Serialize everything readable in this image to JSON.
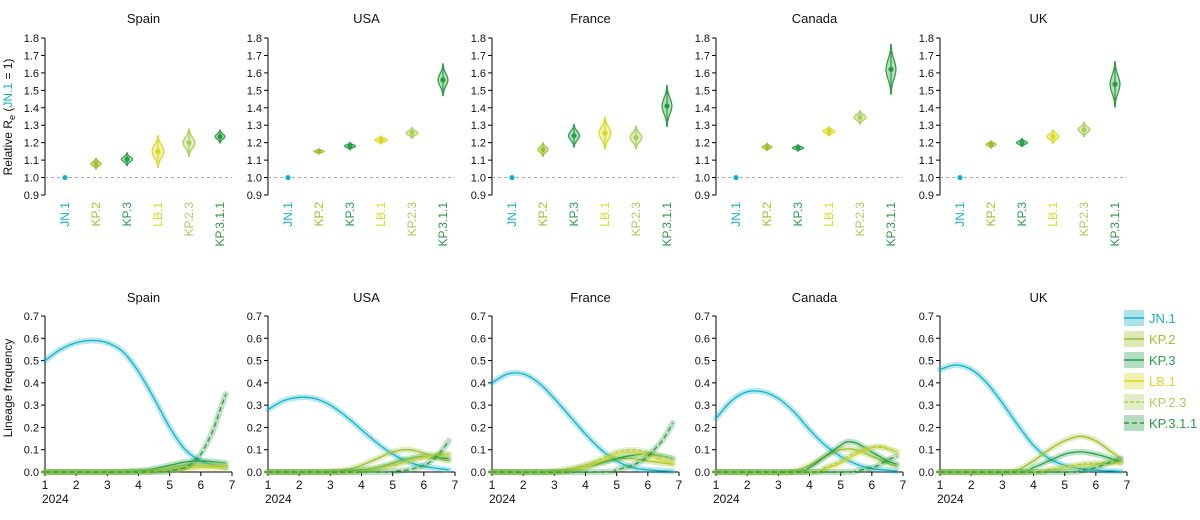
{
  "chart_data": {
    "type": "multi-panel",
    "colors": {
      "JN.1": "#12b3c7",
      "KP.2": "#9cc12e",
      "KP.3": "#28a04a",
      "LB.1": "#d8d820",
      "KP.2.3": "#aacd58",
      "KP.3.1.1": "#2b9a40"
    },
    "variants": [
      "JN.1",
      "KP.2",
      "KP.3",
      "LB.1",
      "KP.2.3",
      "KP.3.1.1"
    ],
    "re_panels": {
      "type": "violin",
      "ylabel_prefix": "Relative R",
      "ylabel_sub": "e",
      "ylabel_ref": "JN.1",
      "ylabel_suffix": " = 1)",
      "ylim": [
        0.9,
        1.8
      ],
      "yticks": [
        "0.9",
        "1.0",
        "1.1",
        "1.2",
        "1.3",
        "1.4",
        "1.5",
        "1.6",
        "1.7",
        "1.8"
      ],
      "reference_line": 1.0,
      "countries": [
        {
          "name": "Spain",
          "values": [
            1.0,
            1.08,
            1.105,
            1.15,
            1.2,
            1.235
          ]
        },
        {
          "name": "USA",
          "values": [
            1.0,
            1.15,
            1.18,
            1.215,
            1.255,
            1.56
          ]
        },
        {
          "name": "France",
          "values": [
            1.0,
            1.16,
            1.24,
            1.255,
            1.23,
            1.41
          ]
        },
        {
          "name": "Canada",
          "values": [
            1.0,
            1.175,
            1.17,
            1.265,
            1.345,
            1.62
          ]
        },
        {
          "name": "UK",
          "values": [
            1.0,
            1.19,
            1.2,
            1.235,
            1.275,
            1.535
          ]
        }
      ]
    },
    "freq_panels": {
      "type": "line",
      "ylabel": "Lineage frequency",
      "xlabel_year": "2024",
      "xlim": [
        1,
        7
      ],
      "xticks": [
        "1",
        "2",
        "3",
        "4",
        "5",
        "6",
        "7"
      ],
      "ylim": [
        0,
        0.7
      ],
      "yticks": [
        "0.0",
        "0.1",
        "0.2",
        "0.3",
        "0.4",
        "0.5",
        "0.6",
        "0.7"
      ],
      "countries": [
        {
          "name": "Spain",
          "series": [
            {
              "name": "JN.1",
              "x": [
                1,
                1.5,
                2,
                2.5,
                3,
                3.5,
                4,
                4.5,
                5,
                5.5,
                6,
                6.5,
                6.8
              ],
              "y": [
                0.5,
                0.55,
                0.58,
                0.59,
                0.58,
                0.54,
                0.45,
                0.33,
                0.2,
                0.1,
                0.05,
                0.03,
                0.02
              ]
            },
            {
              "name": "KP.2",
              "x": [
                1,
                3,
                4,
                4.5,
                5,
                5.5,
                6,
                6.5,
                6.8
              ],
              "y": [
                0,
                0,
                0.003,
                0.008,
                0.02,
                0.03,
                0.03,
                0.025,
                0.02
              ]
            },
            {
              "name": "KP.3",
              "x": [
                1,
                3,
                4,
                4.5,
                5,
                5.5,
                6,
                6.5,
                6.8
              ],
              "y": [
                0,
                0,
                0.005,
                0.015,
                0.03,
                0.045,
                0.05,
                0.045,
                0.04
              ]
            },
            {
              "name": "LB.1",
              "x": [
                1,
                4,
                4.5,
                5,
                5.5,
                6,
                6.5,
                6.8
              ],
              "y": [
                0,
                0,
                0.003,
                0.008,
                0.015,
                0.02,
                0.02,
                0.02
              ]
            },
            {
              "name": "KP.2.3",
              "x": [
                1,
                4,
                4.5,
                5,
                5.5,
                6,
                6.5,
                6.8
              ],
              "y": [
                0,
                0,
                0.003,
                0.01,
                0.02,
                0.03,
                0.03,
                0.03
              ]
            },
            {
              "name": "KP.3.1.1",
              "x": [
                1,
                4.5,
                5,
                5.5,
                5.8,
                6,
                6.2,
                6.4,
                6.6,
                6.8
              ],
              "y": [
                0,
                0,
                0.005,
                0.02,
                0.05,
                0.08,
                0.13,
                0.19,
                0.27,
                0.35
              ]
            }
          ]
        },
        {
          "name": "USA",
          "series": [
            {
              "name": "JN.1",
              "x": [
                1,
                1.5,
                2,
                2.5,
                3,
                3.5,
                4,
                4.5,
                5,
                5.5,
                6,
                6.5,
                6.8
              ],
              "y": [
                0.28,
                0.32,
                0.335,
                0.33,
                0.3,
                0.25,
                0.19,
                0.13,
                0.08,
                0.045,
                0.025,
                0.015,
                0.01
              ]
            },
            {
              "name": "KP.2",
              "x": [
                1,
                2,
                3,
                3.5,
                4,
                4.5,
                5,
                5.5,
                6,
                6.5,
                6.8
              ],
              "y": [
                0,
                0,
                0.003,
                0.01,
                0.03,
                0.06,
                0.09,
                0.1,
                0.085,
                0.06,
                0.05
              ]
            },
            {
              "name": "KP.3",
              "x": [
                1,
                3,
                4,
                4.5,
                5,
                5.5,
                6,
                6.5,
                6.8
              ],
              "y": [
                0,
                0,
                0.01,
                0.02,
                0.04,
                0.06,
                0.07,
                0.065,
                0.06
              ]
            },
            {
              "name": "LB.1",
              "x": [
                1,
                3.5,
                4,
                4.5,
                5,
                5.5,
                6,
                6.5,
                6.8
              ],
              "y": [
                0,
                0,
                0.005,
                0.015,
                0.03,
                0.05,
                0.065,
                0.075,
                0.08
              ]
            },
            {
              "name": "KP.2.3",
              "x": [
                1,
                3.5,
                4,
                4.5,
                5,
                5.5,
                6,
                6.5,
                6.8
              ],
              "y": [
                0,
                0,
                0.005,
                0.015,
                0.03,
                0.05,
                0.07,
                0.08,
                0.08
              ]
            },
            {
              "name": "KP.3.1.1",
              "x": [
                1,
                4.5,
                5,
                5.5,
                5.8,
                6,
                6.2,
                6.4,
                6.6,
                6.8
              ],
              "y": [
                0,
                0,
                0.003,
                0.01,
                0.02,
                0.03,
                0.045,
                0.07,
                0.1,
                0.14
              ]
            }
          ]
        },
        {
          "name": "France",
          "series": [
            {
              "name": "JN.1",
              "x": [
                1,
                1.5,
                2,
                2.5,
                3,
                3.5,
                4,
                4.5,
                5,
                5.5,
                6,
                6.5,
                6.8
              ],
              "y": [
                0.4,
                0.44,
                0.44,
                0.4,
                0.33,
                0.25,
                0.17,
                0.1,
                0.05,
                0.02,
                0.01,
                0.005,
                0.003
              ]
            },
            {
              "name": "KP.2",
              "x": [
                1,
                2.5,
                3,
                3.5,
                4,
                4.5,
                5,
                5.5,
                6,
                6.5,
                6.8
              ],
              "y": [
                0,
                0,
                0.005,
                0.015,
                0.03,
                0.045,
                0.06,
                0.06,
                0.05,
                0.04,
                0.035
              ]
            },
            {
              "name": "KP.3",
              "x": [
                1,
                3,
                3.5,
                4,
                4.5,
                5,
                5.5,
                6,
                6.5,
                6.8
              ],
              "y": [
                0,
                0,
                0.005,
                0.02,
                0.04,
                0.06,
                0.075,
                0.08,
                0.07,
                0.06
              ]
            },
            {
              "name": "LB.1",
              "x": [
                1,
                3,
                3.5,
                4,
                4.5,
                5,
                5.5,
                6,
                6.5,
                6.8
              ],
              "y": [
                0,
                0,
                0.005,
                0.02,
                0.05,
                0.08,
                0.09,
                0.075,
                0.05,
                0.04
              ]
            },
            {
              "name": "KP.2.3",
              "x": [
                1,
                3,
                3.5,
                4,
                4.5,
                5,
                5.5,
                6,
                6.5,
                6.8
              ],
              "y": [
                0,
                0,
                0.01,
                0.03,
                0.06,
                0.09,
                0.1,
                0.09,
                0.07,
                0.06
              ]
            },
            {
              "name": "KP.3.1.1",
              "x": [
                1,
                4.5,
                5,
                5.5,
                5.8,
                6,
                6.2,
                6.4,
                6.6,
                6.8
              ],
              "y": [
                0,
                0,
                0.01,
                0.03,
                0.05,
                0.07,
                0.1,
                0.13,
                0.17,
                0.22
              ]
            }
          ]
        },
        {
          "name": "Canada",
          "series": [
            {
              "name": "JN.1",
              "x": [
                1,
                1.5,
                2,
                2.5,
                3,
                3.5,
                4,
                4.5,
                5,
                5.5,
                6,
                6.5,
                6.8
              ],
              "y": [
                0.24,
                0.32,
                0.36,
                0.36,
                0.33,
                0.27,
                0.19,
                0.12,
                0.07,
                0.035,
                0.015,
                0.008,
                0.005
              ]
            },
            {
              "name": "KP.2",
              "x": [
                1,
                3,
                3.5,
                4,
                4.5,
                5,
                5.5,
                6,
                6.5,
                6.8
              ],
              "y": [
                0,
                0,
                0.005,
                0.03,
                0.07,
                0.1,
                0.1,
                0.07,
                0.04,
                0.025
              ]
            },
            {
              "name": "KP.3",
              "x": [
                1,
                3.5,
                4,
                4.5,
                5,
                5.2,
                5.5,
                6,
                6.5,
                6.8
              ],
              "y": [
                0,
                0,
                0.02,
                0.07,
                0.12,
                0.135,
                0.13,
                0.09,
                0.05,
                0.035
              ]
            },
            {
              "name": "LB.1",
              "x": [
                1,
                4,
                4.5,
                5,
                5.5,
                6,
                6.3,
                6.6,
                6.8
              ],
              "y": [
                0,
                0,
                0.015,
                0.04,
                0.08,
                0.11,
                0.115,
                0.1,
                0.09
              ]
            },
            {
              "name": "KP.2.3",
              "x": [
                1,
                4,
                4.5,
                5,
                5.5,
                6,
                6.3,
                6.6,
                6.8
              ],
              "y": [
                0,
                0,
                0.02,
                0.05,
                0.09,
                0.11,
                0.11,
                0.1,
                0.09
              ]
            },
            {
              "name": "KP.3.1.1",
              "x": [
                1,
                5,
                5.5,
                6,
                6.2,
                6.4,
                6.6,
                6.8
              ],
              "y": [
                0,
                0,
                0.005,
                0.02,
                0.03,
                0.045,
                0.06,
                0.07
              ]
            }
          ]
        },
        {
          "name": "UK",
          "series": [
            {
              "name": "JN.1",
              "x": [
                1,
                1.5,
                2,
                2.5,
                3,
                3.5,
                4,
                4.5,
                5,
                5.5,
                6,
                6.5,
                6.8
              ],
              "y": [
                0.46,
                0.48,
                0.46,
                0.4,
                0.31,
                0.21,
                0.12,
                0.06,
                0.03,
                0.015,
                0.008,
                0.005,
                0.003
              ]
            },
            {
              "name": "KP.2",
              "x": [
                1,
                3,
                3.5,
                4,
                4.5,
                5,
                5.5,
                6,
                6.5,
                6.8
              ],
              "y": [
                0,
                0,
                0.01,
                0.05,
                0.1,
                0.14,
                0.16,
                0.14,
                0.09,
                0.06
              ]
            },
            {
              "name": "KP.3",
              "x": [
                1,
                3.5,
                4,
                4.5,
                5,
                5.5,
                6,
                6.5,
                6.8
              ],
              "y": [
                0,
                0,
                0.02,
                0.05,
                0.08,
                0.09,
                0.08,
                0.06,
                0.045
              ]
            },
            {
              "name": "LB.1",
              "x": [
                1,
                4,
                4.5,
                5,
                5.5,
                6,
                6.5,
                6.8
              ],
              "y": [
                0,
                0,
                0.01,
                0.02,
                0.03,
                0.035,
                0.04,
                0.04
              ]
            },
            {
              "name": "KP.2.3",
              "x": [
                1,
                4,
                4.5,
                5,
                5.5,
                6,
                6.5,
                6.8
              ],
              "y": [
                0,
                0,
                0.01,
                0.02,
                0.035,
                0.04,
                0.045,
                0.045
              ]
            },
            {
              "name": "KP.3.1.1",
              "x": [
                1,
                5,
                5.5,
                6,
                6.3,
                6.6,
                6.8
              ],
              "y": [
                0,
                0,
                0.005,
                0.02,
                0.035,
                0.05,
                0.06
              ]
            }
          ]
        }
      ]
    }
  }
}
